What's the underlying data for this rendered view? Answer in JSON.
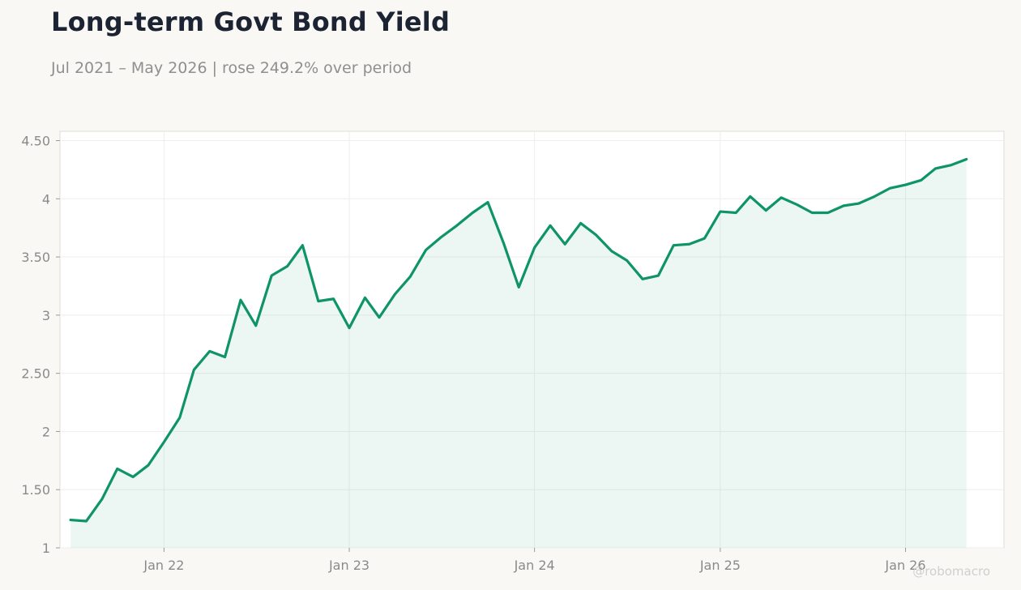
{
  "header": {
    "title": "Long-term Govt Bond Yield",
    "subtitle": "Jul 2021 – May 2026 | rose 249.2% over period"
  },
  "watermark": "@robomacro",
  "colors": {
    "line": "#0e9466",
    "fill": "#0e9466",
    "background": "#f9f8f5",
    "plot_background": "#ffffff",
    "grid": "#eeeeee"
  },
  "chart_data": {
    "type": "area",
    "title": "Long-term Govt Bond Yield",
    "subtitle": "Jul 2021 – May 2026 | rose 249.2% over period",
    "xlabel": "",
    "ylabel": "",
    "ylim": [
      1.0,
      4.58
    ],
    "xlim": [
      "2021-06-10",
      "2026-07-14"
    ],
    "y_ticks": [
      1.0,
      1.5,
      2.0,
      2.5,
      3.0,
      3.5,
      4.0,
      4.5
    ],
    "y_tick_labels": [
      "1",
      "1.50",
      "2",
      "2.50",
      "3",
      "3.50",
      "4",
      "4.50"
    ],
    "x_ticks": [
      "2022-01-01",
      "2023-01-01",
      "2024-01-01",
      "2025-01-01",
      "2026-01-01"
    ],
    "x_tick_labels": [
      "Jan 22",
      "Jan 23",
      "Jan 24",
      "Jan 25",
      "Jan 26"
    ],
    "grid": true,
    "legend": "none",
    "series": [
      {
        "points": [
          [
            "2021-07-01",
            1.24
          ],
          [
            "2021-08-01",
            1.23
          ],
          [
            "2021-09-01",
            1.42
          ],
          [
            "2021-10-01",
            1.68
          ],
          [
            "2021-11-01",
            1.61
          ],
          [
            "2021-12-01",
            1.71
          ],
          [
            "2022-01-01",
            1.91
          ],
          [
            "2022-02-01",
            2.12
          ],
          [
            "2022-03-01",
            2.53
          ],
          [
            "2022-04-01",
            2.69
          ],
          [
            "2022-05-01",
            2.64
          ],
          [
            "2022-06-01",
            3.13
          ],
          [
            "2022-07-01",
            2.91
          ],
          [
            "2022-08-01",
            3.34
          ],
          [
            "2022-09-01",
            3.42
          ],
          [
            "2022-10-01",
            3.6
          ],
          [
            "2022-11-01",
            3.12
          ],
          [
            "2022-12-01",
            3.14
          ],
          [
            "2023-01-01",
            2.89
          ],
          [
            "2023-02-01",
            3.15
          ],
          [
            "2023-03-01",
            2.98
          ],
          [
            "2023-04-01",
            3.18
          ],
          [
            "2023-05-01",
            3.33
          ],
          [
            "2023-06-01",
            3.56
          ],
          [
            "2023-07-01",
            3.67
          ],
          [
            "2023-08-01",
            3.77
          ],
          [
            "2023-09-01",
            3.88
          ],
          [
            "2023-10-01",
            3.97
          ],
          [
            "2023-11-01",
            3.62
          ],
          [
            "2023-12-01",
            3.24
          ],
          [
            "2024-01-01",
            3.58
          ],
          [
            "2024-02-01",
            3.77
          ],
          [
            "2024-03-01",
            3.61
          ],
          [
            "2024-04-01",
            3.79
          ],
          [
            "2024-05-01",
            3.69
          ],
          [
            "2024-06-01",
            3.55
          ],
          [
            "2024-07-01",
            3.47
          ],
          [
            "2024-08-01",
            3.31
          ],
          [
            "2024-09-01",
            3.34
          ],
          [
            "2024-10-01",
            3.6
          ],
          [
            "2024-11-01",
            3.61
          ],
          [
            "2024-12-01",
            3.66
          ],
          [
            "2025-01-01",
            3.89
          ],
          [
            "2025-02-01",
            3.88
          ],
          [
            "2025-03-01",
            4.02
          ],
          [
            "2025-04-01",
            3.9
          ],
          [
            "2025-05-01",
            4.01
          ],
          [
            "2025-06-01",
            3.95
          ],
          [
            "2025-07-01",
            3.88
          ],
          [
            "2025-08-01",
            3.88
          ],
          [
            "2025-09-01",
            3.94
          ],
          [
            "2025-10-01",
            3.96
          ],
          [
            "2025-11-01",
            4.02
          ],
          [
            "2025-12-01",
            4.09
          ],
          [
            "2026-01-01",
            4.12
          ],
          [
            "2026-02-01",
            4.16
          ],
          [
            "2026-03-01",
            4.26
          ],
          [
            "2026-04-01",
            4.29
          ],
          [
            "2026-05-01",
            4.34
          ]
        ]
      }
    ]
  }
}
